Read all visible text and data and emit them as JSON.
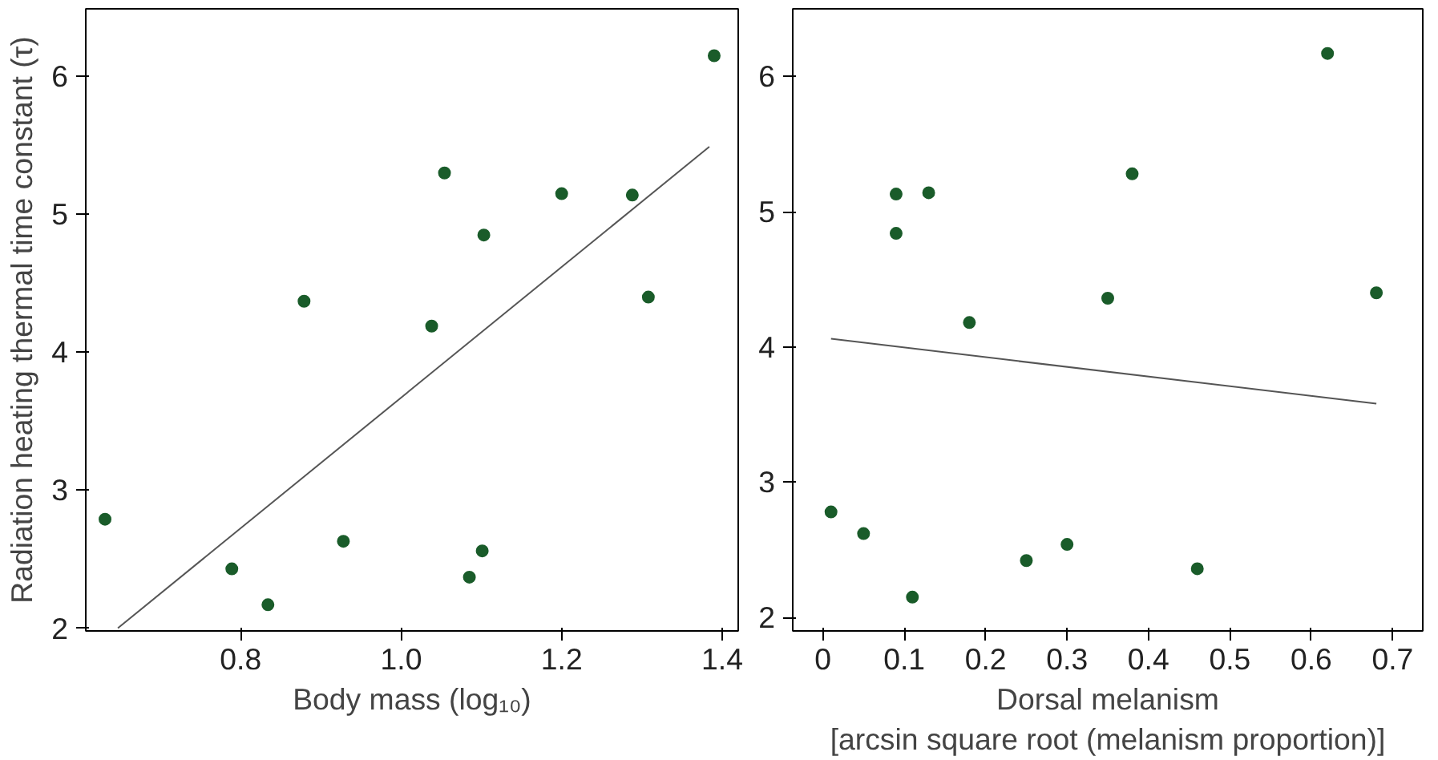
{
  "chart_data": [
    {
      "type": "scatter",
      "xlabel": "Body mass (log₁₀)",
      "ylabel": "Radiation heating thermal time constant (τ)",
      "xlim": [
        0.607,
        1.42
      ],
      "ylim": [
        1.98,
        6.49
      ],
      "xticks": [
        0.8,
        {
          "value": 1.0,
          "label": "1.0"
        },
        1.2,
        1.4
      ],
      "yticks": [
        2,
        3,
        4,
        5,
        6
      ],
      "grid": false,
      "series": [
        {
          "marker": "circle",
          "color": "#1a5c2a",
          "x": [
            0.631,
            0.789,
            0.834,
            0.879,
            0.928,
            1.038,
            1.054,
            1.103,
            1.101,
            1.085,
            1.2,
            1.288,
            1.308,
            1.39
          ],
          "values": [
            2.79,
            2.43,
            2.17,
            4.37,
            2.63,
            4.19,
            5.3,
            4.85,
            2.56,
            2.37,
            5.15,
            5.14,
            4.4,
            6.15
          ]
        },
        {
          "type": "line",
          "color": "#555555",
          "x": [
            0.647,
            1.384
          ],
          "values": [
            2.0,
            5.49
          ]
        }
      ]
    },
    {
      "type": "scatter",
      "xlabel": "Dorsal melanism\n[arcsin square root (melanism proportion)]",
      "xlim": [
        -0.037,
        0.737
      ],
      "ylim": [
        1.9,
        6.5
      ],
      "xticks": [
        0,
        0.1,
        0.2,
        0.3,
        0.4,
        0.5,
        0.6,
        0.7
      ],
      "yticks": [
        2,
        3,
        4,
        5,
        6
      ],
      "grid": false,
      "series": [
        {
          "marker": "circle",
          "color": "#1a5c2a",
          "x": [
            0.01,
            0.05,
            0.09,
            0.09,
            0.11,
            0.13,
            0.18,
            0.25,
            0.3,
            0.35,
            0.38,
            0.46,
            0.62,
            0.68
          ],
          "values": [
            2.78,
            2.62,
            4.84,
            5.13,
            2.15,
            5.14,
            4.18,
            2.42,
            2.54,
            4.36,
            5.28,
            2.36,
            6.17,
            4.4
          ]
        },
        {
          "type": "line",
          "color": "#555555",
          "x": [
            0.01,
            0.68
          ],
          "values": [
            4.06,
            3.58
          ]
        }
      ]
    }
  ]
}
